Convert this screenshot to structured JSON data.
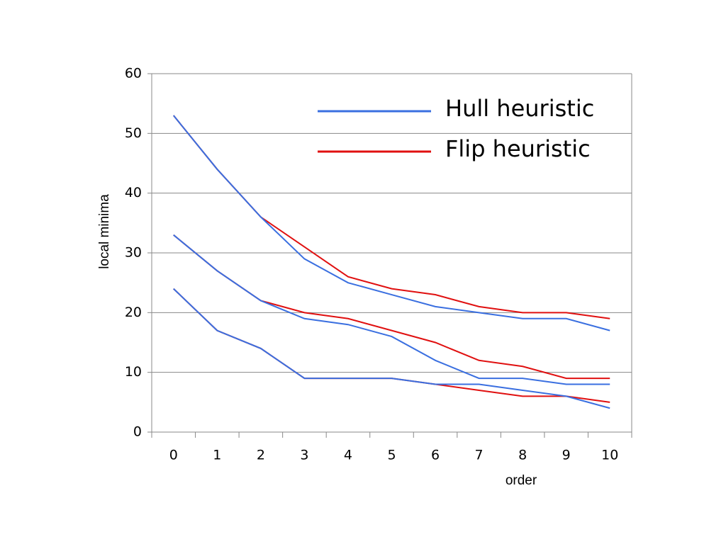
{
  "chart_data": {
    "type": "line",
    "x_label": "order",
    "y_label": "local minima",
    "categories": [
      0,
      1,
      2,
      3,
      4,
      5,
      6,
      7,
      8,
      9,
      10
    ],
    "series": [
      {
        "name": "Hull heuristic",
        "color": "#3a6fe0",
        "values": [
          [
            53,
            44,
            36,
            29,
            25,
            23,
            21,
            20,
            19,
            19,
            17
          ],
          [
            33,
            27,
            22,
            19,
            18,
            16,
            12,
            9,
            9,
            8,
            8
          ],
          [
            24,
            17,
            14,
            9,
            9,
            9,
            8,
            8,
            7,
            6,
            4
          ]
        ]
      },
      {
        "name": "Flip heuristic",
        "color": "#e01010",
        "values": [
          [
            53,
            44,
            36,
            31,
            26,
            24,
            23,
            21,
            20,
            20,
            19
          ],
          [
            33,
            27,
            22,
            20,
            19,
            17,
            15,
            12,
            11,
            9,
            9
          ],
          [
            24,
            17,
            14,
            9,
            9,
            9,
            8,
            7,
            6,
            6,
            5
          ]
        ]
      }
    ],
    "ylim": [
      0,
      60
    ],
    "yticks": [
      0,
      10,
      20,
      30,
      40,
      50,
      60
    ],
    "grid": true
  }
}
